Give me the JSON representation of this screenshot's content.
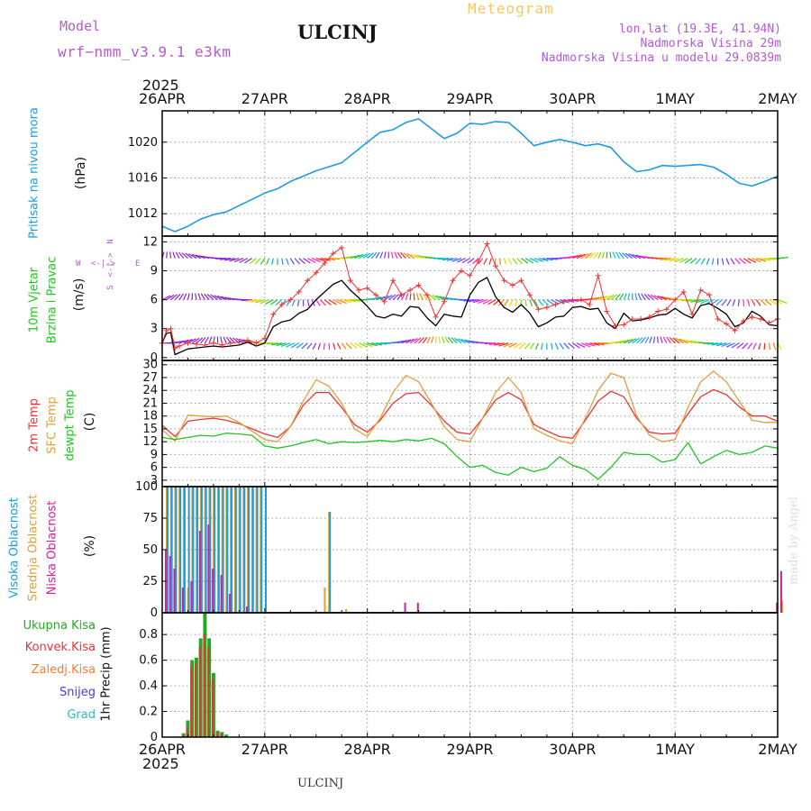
{
  "header": {
    "model_label": "Model",
    "model_name": "wrf−nmm_v3.9.1  e3km",
    "station": "ULCINJ",
    "meteogram": "Meteogram",
    "lonlat": "lon,lat (19.3E, 41.94N)",
    "altitude": "Nadmorska Visina 29m",
    "model_altitude": "Nadmorska Visina u modelu 29.0839m",
    "footer_station": "ULCINJ",
    "watermark": "made by Angel"
  },
  "colors": {
    "pressure": "#1e9be0",
    "wind": "#000000",
    "gust": "#ee3333",
    "temp2m": "#ee3333",
    "sfc": "#e0a040",
    "dewpt": "#22c422",
    "high_cloud": "#1e9be0",
    "mid_cloud": "#e0a030",
    "low_cloud": "#cc2299",
    "total_precip": "#22aa22",
    "conv_precip": "#e63333",
    "frz": "#f07f30",
    "snow": "#4040e0",
    "grad": "#20c0c0"
  },
  "time_axis": {
    "year": "2025",
    "labels": [
      "26APR",
      "27APR",
      "28APR",
      "29APR",
      "30APR",
      "1MAY",
      "2MAY"
    ]
  },
  "chart_data": [
    {
      "type": "line",
      "name": "pressure",
      "title_lines": [
        "Pritisak na nivou mora"
      ],
      "ylabel": "(hPa)",
      "ylim": [
        1009.5,
        1023.5
      ],
      "yticks": [
        1012,
        1016,
        1020
      ],
      "series": [
        {
          "name": "MSLP",
          "x": [
            0,
            3,
            6,
            9,
            12,
            15,
            18,
            21,
            24,
            27,
            30,
            33,
            36,
            42,
            48,
            51,
            54,
            57,
            60,
            63,
            66,
            69,
            72,
            75,
            78,
            81,
            84,
            87,
            90,
            93,
            96,
            99,
            102,
            105,
            108,
            111,
            114,
            117,
            120,
            123,
            126,
            129,
            132,
            135,
            138,
            141,
            144
          ],
          "values": [
            1010.6,
            1010.0,
            1010.6,
            1011.4,
            1011.9,
            1012.2,
            1012.9,
            1013.6,
            1014.3,
            1014.8,
            1015.6,
            1016.2,
            1016.8,
            1017.7,
            1020.0,
            1021.1,
            1021.4,
            1022.2,
            1022.6,
            1021.5,
            1020.4,
            1021.0,
            1022.1,
            1022.0,
            1022.3,
            1022.2,
            1021.0,
            1019.6,
            1020.0,
            1020.3,
            1020.0,
            1019.6,
            1019.8,
            1019.4,
            1017.8,
            1016.7,
            1016.9,
            1017.4,
            1017.3,
            1017.4,
            1017.5,
            1017.2,
            1016.4,
            1015.4,
            1015.1,
            1015.6,
            1016.2
          ]
        }
      ]
    },
    {
      "type": "line",
      "name": "wind",
      "title_lines": [
        "10m Vjetar",
        "Brzina i Pravac"
      ],
      "ylabel": "(m/s)",
      "ylim": [
        -0.3,
        12.6
      ],
      "yticks": [
        0,
        3,
        6,
        9,
        12
      ],
      "direction_legend": {
        "north": "N",
        "south": "S",
        "west": "W",
        "east": "E",
        "arrows": "<-|->"
      },
      "vane_levels": [
        1.5,
        6.0,
        10.3
      ],
      "series": [
        {
          "name": "speed",
          "x": [
            0,
            1,
            2,
            3,
            4,
            6,
            8,
            10,
            12,
            14,
            16,
            18,
            20,
            22,
            24,
            26,
            28,
            30,
            32,
            34,
            36,
            38,
            40,
            42,
            44,
            46,
            48,
            50,
            52,
            54,
            56,
            58,
            60,
            62,
            64,
            66,
            68,
            70,
            72,
            74,
            76,
            78,
            80,
            82,
            84,
            86,
            88,
            90,
            92,
            94,
            96,
            98,
            100,
            102,
            104,
            106,
            108,
            110,
            112,
            114,
            116,
            118,
            120,
            122,
            124,
            126,
            128,
            130,
            132,
            134,
            136,
            138,
            140,
            142,
            144
          ],
          "values": [
            1.5,
            2.5,
            2.6,
            0.3,
            0.5,
            0.9,
            1.0,
            1.1,
            1.2,
            1.1,
            1.2,
            1.3,
            1.6,
            1.2,
            1.5,
            3.2,
            3.7,
            3.9,
            4.6,
            5.0,
            6.0,
            6.8,
            7.6,
            8.0,
            7.0,
            6.2,
            5.3,
            4.3,
            4.1,
            4.5,
            4.3,
            5.3,
            5.2,
            4.1,
            3.3,
            4.5,
            4.3,
            4.2,
            6.5,
            7.8,
            8.3,
            6.3,
            5.2,
            4.7,
            5.5,
            4.6,
            3.2,
            3.6,
            4.2,
            4.3,
            5.2,
            5.3,
            5.0,
            5.1,
            3.6,
            3.0,
            4.6,
            3.8,
            3.9,
            4.1,
            4.4,
            4.5,
            5.1,
            4.5,
            4.1,
            5.4,
            5.6,
            5.1,
            4.5,
            3.2,
            3.6,
            4.8,
            4.3,
            3.4,
            3.3
          ]
        },
        {
          "name": "gust",
          "x": [
            0,
            1,
            2,
            3,
            4,
            6,
            8,
            10,
            12,
            14,
            16,
            18,
            20,
            22,
            24,
            26,
            28,
            30,
            32,
            34,
            36,
            38,
            40,
            42,
            44,
            46,
            48,
            50,
            52,
            54,
            56,
            58,
            60,
            62,
            64,
            66,
            68,
            70,
            72,
            74,
            76,
            78,
            80,
            82,
            84,
            86,
            88,
            90,
            92,
            94,
            96,
            98,
            100,
            102,
            104,
            106,
            108,
            110,
            112,
            114,
            116,
            118,
            120,
            122,
            124,
            126,
            128,
            130,
            132,
            134,
            136,
            138,
            140,
            142,
            144
          ],
          "values": [
            1.5,
            2.8,
            3.0,
            1.0,
            1.2,
            1.5,
            1.4,
            1.3,
            1.5,
            1.3,
            1.5,
            1.6,
            1.8,
            1.5,
            2.0,
            4.5,
            5.5,
            6.0,
            6.8,
            8.0,
            8.8,
            9.8,
            10.8,
            11.4,
            8.0,
            7.0,
            7.2,
            6.5,
            5.8,
            8.0,
            6.5,
            7.0,
            7.5,
            6.5,
            4.2,
            5.8,
            8.0,
            9.0,
            8.5,
            10.0,
            11.8,
            9.5,
            8.0,
            7.5,
            8.0,
            6.5,
            5.0,
            5.2,
            5.5,
            5.8,
            6.0,
            6.0,
            5.5,
            8.5,
            4.8,
            3.3,
            3.4,
            4.0,
            4.0,
            4.2,
            4.8,
            5.0,
            6.0,
            6.8,
            4.5,
            7.0,
            6.5,
            4.0,
            3.5,
            2.8,
            3.8,
            4.2,
            4.0,
            3.6,
            4.0
          ]
        }
      ]
    },
    {
      "type": "line",
      "name": "temperature",
      "title_lines": [
        "2m Temp",
        "SFC Temp",
        "dewpt Temp"
      ],
      "ylabel": "(C)",
      "ylim": [
        1.5,
        31
      ],
      "yticks": [
        3,
        6,
        9,
        12,
        15,
        18,
        21,
        24,
        27,
        30
      ],
      "series": [
        {
          "name": "2m Temp",
          "x": [
            0,
            3,
            6,
            9,
            12,
            15,
            18,
            21,
            24,
            27,
            30,
            33,
            36,
            39,
            42,
            45,
            48,
            51,
            54,
            57,
            60,
            63,
            66,
            69,
            72,
            75,
            78,
            81,
            84,
            87,
            90,
            93,
            96,
            99,
            102,
            105,
            108,
            111,
            114,
            117,
            120,
            123,
            126,
            129,
            132,
            135,
            138,
            141,
            144
          ],
          "values": [
            15.8,
            13.2,
            16.8,
            17.2,
            17.5,
            17.0,
            16.2,
            15.0,
            13.8,
            13.0,
            15.5,
            20.5,
            23.5,
            23.5,
            20.0,
            16.0,
            14.2,
            17.0,
            21.0,
            23.2,
            23.5,
            20.5,
            16.8,
            14.2,
            13.8,
            17.5,
            21.8,
            23.5,
            21.8,
            16.0,
            14.5,
            13.2,
            12.8,
            17.0,
            21.5,
            23.8,
            22.5,
            17.5,
            14.2,
            13.8,
            14.0,
            18.5,
            22.5,
            24.2,
            23.0,
            20.2,
            18.0,
            18.0,
            16.8
          ]
        },
        {
          "name": "SFC Temp",
          "x": [
            0,
            3,
            6,
            9,
            12,
            15,
            18,
            21,
            24,
            27,
            30,
            33,
            36,
            39,
            42,
            45,
            48,
            51,
            54,
            57,
            60,
            63,
            66,
            69,
            72,
            75,
            78,
            81,
            84,
            87,
            90,
            93,
            96,
            99,
            102,
            105,
            108,
            111,
            114,
            117,
            120,
            123,
            126,
            129,
            132,
            135,
            138,
            141,
            144
          ],
          "values": [
            14.8,
            12.2,
            18.2,
            18.0,
            17.8,
            18.0,
            16.5,
            14.5,
            12.5,
            12.0,
            15.5,
            21.5,
            26.5,
            25.0,
            21.0,
            15.0,
            13.2,
            17.5,
            23.5,
            27.5,
            26.0,
            21.0,
            15.5,
            12.5,
            12.0,
            17.5,
            23.5,
            27.0,
            23.5,
            15.0,
            13.5,
            12.2,
            11.5,
            17.5,
            24.0,
            28.0,
            27.0,
            18.0,
            13.5,
            12.0,
            12.5,
            20.0,
            26.0,
            28.5,
            26.0,
            21.5,
            17.0,
            16.5,
            16.5
          ]
        },
        {
          "name": "dewpt Temp",
          "x": [
            0,
            3,
            6,
            9,
            12,
            15,
            18,
            21,
            24,
            27,
            30,
            33,
            36,
            39,
            42,
            45,
            48,
            51,
            54,
            57,
            60,
            63,
            66,
            69,
            72,
            75,
            78,
            81,
            84,
            87,
            90,
            93,
            96,
            99,
            102,
            105,
            108,
            111,
            114,
            117,
            120,
            123,
            126,
            129,
            132,
            135,
            138,
            141,
            144
          ],
          "values": [
            13.0,
            12.5,
            13.0,
            13.5,
            13.3,
            14.0,
            13.8,
            13.5,
            11.0,
            10.5,
            11.0,
            11.8,
            12.5,
            11.5,
            12.0,
            11.8,
            12.0,
            12.3,
            12.0,
            12.5,
            12.2,
            12.8,
            11.5,
            8.5,
            6.0,
            6.5,
            4.8,
            4.2,
            6.0,
            5.0,
            5.8,
            8.5,
            6.5,
            5.5,
            3.2,
            6.0,
            9.5,
            9.0,
            9.0,
            7.2,
            7.8,
            11.8,
            6.8,
            8.5,
            10.0,
            9.0,
            9.5,
            11.0,
            10.5
          ]
        }
      ]
    },
    {
      "type": "bar",
      "name": "clouds",
      "title_lines": [
        "Visoka Oblacnost",
        "Srednja Oblacnost",
        "Niska Oblacnost"
      ],
      "ylabel": "(%)",
      "ylim": [
        0,
        100
      ],
      "yticks": [
        0,
        25,
        50,
        75,
        100
      ],
      "series": [
        {
          "name": "Visoka Oblacnost",
          "x": [
            1,
            2,
            3,
            4,
            5,
            6,
            7,
            8,
            9,
            10,
            11,
            12,
            13,
            14,
            15,
            16,
            17,
            18,
            19,
            20,
            21,
            22,
            23,
            24,
            39
          ],
          "values": [
            100,
            100,
            100,
            100,
            100,
            100,
            100,
            100,
            100,
            100,
            100,
            100,
            100,
            100,
            100,
            100,
            100,
            100,
            100,
            100,
            100,
            100,
            100,
            100,
            80
          ]
        },
        {
          "name": "Srednja Oblacnost",
          "x": [
            1,
            2,
            3,
            4,
            5,
            6,
            7,
            8,
            9,
            10,
            11,
            12,
            13,
            14,
            15,
            16,
            17,
            18,
            19,
            20,
            21,
            22,
            23,
            38,
            39,
            43,
            145
          ],
          "values": [
            100,
            100,
            100,
            100,
            100,
            20,
            100,
            100,
            100,
            100,
            100,
            100,
            100,
            100,
            100,
            100,
            100,
            100,
            100,
            100,
            100,
            100,
            100,
            20,
            80,
            3,
            10
          ]
        },
        {
          "name": "Niska Oblacnost",
          "x": [
            1,
            2,
            3,
            5,
            7,
            9,
            11,
            12,
            14,
            16,
            20,
            57,
            60,
            144,
            145
          ],
          "values": [
            50,
            45,
            35,
            20,
            25,
            65,
            70,
            35,
            30,
            15,
            5,
            8,
            8,
            8,
            33
          ]
        }
      ]
    },
    {
      "type": "bar",
      "name": "precip",
      "title_lines": [
        "1hr Precip (mm)"
      ],
      "legend": [
        "Ukupna Kisa",
        "Konvek.Kisa",
        "Zaledj.Kisa",
        "Snijeg",
        "Grad"
      ],
      "ylim": [
        0,
        0.97
      ],
      "yticks": [
        0,
        0.2,
        0.4,
        0.6,
        0.8
      ],
      "series": [
        {
          "name": "Ukupna Kisa",
          "x": [
            5,
            6,
            7,
            8,
            9,
            10,
            11,
            12,
            13,
            14,
            15
          ],
          "values": [
            0.03,
            0.13,
            0.6,
            0.62,
            0.77,
            0.97,
            0.77,
            0.5,
            0.05,
            0.04,
            0.02
          ]
        },
        {
          "name": "Konvek.Kisa",
          "x": [
            5,
            6,
            7,
            8,
            9,
            10,
            11,
            12,
            13,
            14
          ],
          "values": [
            0.02,
            0.08,
            0.55,
            0.58,
            0.7,
            0.8,
            0.7,
            0.45,
            0.04,
            0.03
          ]
        }
      ]
    }
  ]
}
